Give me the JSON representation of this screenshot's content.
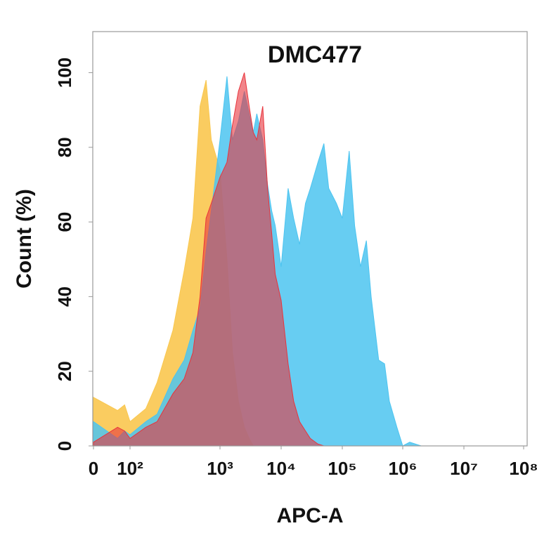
{
  "chart_data": {
    "type": "area",
    "title": "DMC477",
    "xlabel": "APC-A",
    "ylabel": "Count  (%)",
    "xscale": "biexponential",
    "x": [
      0,
      20,
      50,
      100,
      150,
      200,
      300,
      400,
      500,
      600,
      700,
      800,
      1000,
      1300,
      1600,
      2000,
      2500,
      3000,
      3500,
      4000,
      5000,
      6000,
      7000,
      8000,
      10000,
      13000,
      16000,
      20000,
      25000,
      30000,
      40000,
      50000,
      60000,
      80000,
      100000,
      130000,
      160000,
      200000,
      250000,
      300000,
      400000,
      500000,
      600000,
      800000,
      1000000,
      1300000,
      2000000,
      10000000,
      100000000
    ],
    "series": [
      {
        "color": "#f9c74f",
        "values": [
          13,
          9.5,
          11,
          6.5,
          10,
          17,
          31,
          47,
          61,
          91,
          98,
          82,
          74,
          50,
          25,
          12,
          5,
          2,
          0,
          0,
          0,
          0,
          0,
          0,
          0,
          0,
          0,
          0,
          0,
          0,
          0,
          0,
          0,
          0,
          0,
          0,
          0,
          0,
          0,
          0,
          0,
          0,
          0,
          0,
          0,
          0,
          0,
          0,
          0
        ]
      },
      {
        "color": "#4cc4f0",
        "values": [
          6.5,
          2,
          4,
          3,
          6.5,
          8.5,
          18,
          23,
          31,
          37,
          52,
          63,
          82,
          99,
          82,
          87,
          95,
          89,
          84,
          89,
          82,
          70,
          63,
          59,
          48,
          69,
          61,
          54,
          65,
          69,
          76,
          81,
          69,
          65,
          61,
          79,
          59,
          48,
          55,
          40,
          23,
          22,
          12,
          5,
          0,
          1,
          0,
          0,
          0
        ]
      },
      {
        "color": "#e8343c",
        "values": [
          1,
          5,
          4,
          2,
          5,
          6.5,
          14,
          18,
          25,
          40,
          61,
          65,
          72,
          76,
          86,
          95,
          100,
          91,
          84,
          82,
          91,
          69,
          57,
          46,
          39,
          22,
          12,
          6.5,
          4,
          2,
          0.5,
          0,
          0,
          0,
          0,
          0,
          0,
          0,
          0,
          0,
          0,
          0,
          0,
          0,
          0,
          0,
          0,
          0,
          0
        ]
      }
    ],
    "xlim": [
      0,
      100000000
    ],
    "xticks": [
      0,
      {
        "value": 100,
        "label": "10²"
      },
      {
        "value": 1000,
        "label": "10³"
      },
      {
        "value": 10000,
        "label": "10⁴"
      },
      {
        "value": 100000,
        "label": "10⁵"
      },
      {
        "value": 1000000,
        "label": "10⁶"
      },
      {
        "value": 10000000,
        "label": "10⁷"
      },
      {
        "value": 100000000,
        "label": "10⁸"
      }
    ],
    "ylim": [
      0,
      111
    ],
    "yticks": [
      0,
      20,
      40,
      60,
      80,
      100
    ]
  }
}
